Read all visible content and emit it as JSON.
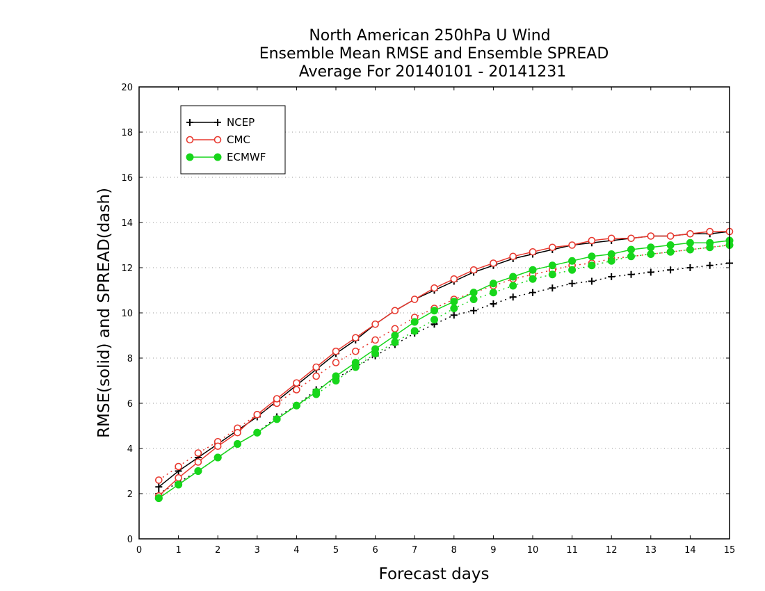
{
  "chart_data": {
    "type": "line",
    "title_lines": [
      "North American 250hPa U Wind",
      "Ensemble Mean RMSE and Ensemble SPREAD",
      "Average For 20140101 - 20141231"
    ],
    "xlabel": "Forecast days",
    "ylabel": "RMSE(solid) and SPREAD(dash)",
    "xlim": [
      0,
      15
    ],
    "ylim": [
      0,
      20
    ],
    "x_ticks": [
      "0",
      "1",
      "2",
      "3",
      "4",
      "5",
      "6",
      "7",
      "8",
      "9",
      "10",
      "11",
      "12",
      "13",
      "14",
      "15"
    ],
    "y_ticks": [
      "0",
      "2",
      "4",
      "6",
      "8",
      "10",
      "12",
      "14",
      "16",
      "18",
      "20"
    ],
    "grid": "horizontal dotted",
    "legend_position": "top-left",
    "x": [
      0.5,
      1,
      1.5,
      2,
      2.5,
      3,
      3.5,
      4,
      4.5,
      5,
      5.5,
      6,
      6.5,
      7,
      7.5,
      8,
      8.5,
      9,
      9.5,
      10,
      10.5,
      11,
      11.5,
      12,
      12.5,
      13,
      13.5,
      14,
      14.5,
      15
    ],
    "series": [
      {
        "name": "NCEP",
        "color": "#000000",
        "marker": "plus",
        "rmse": [
          2.3,
          3.0,
          3.6,
          4.2,
          4.8,
          5.4,
          6.1,
          6.8,
          7.5,
          8.2,
          8.8,
          9.5,
          10.1,
          10.6,
          11.0,
          11.4,
          11.8,
          12.1,
          12.4,
          12.6,
          12.8,
          13.0,
          13.1,
          13.2,
          13.3,
          13.4,
          13.4,
          13.5,
          13.5,
          13.6
        ],
        "spread": [
          2.0,
          2.5,
          3.0,
          3.6,
          4.2,
          4.7,
          5.4,
          5.9,
          6.6,
          7.1,
          7.6,
          8.1,
          8.6,
          9.1,
          9.5,
          9.9,
          10.1,
          10.4,
          10.7,
          10.9,
          11.1,
          11.3,
          11.4,
          11.6,
          11.7,
          11.8,
          11.9,
          12.0,
          12.1,
          12.2
        ]
      },
      {
        "name": "CMC",
        "color": "#e8392f",
        "marker": "open-circle",
        "rmse": [
          1.9,
          2.7,
          3.4,
          4.1,
          4.7,
          5.5,
          6.2,
          6.9,
          7.6,
          8.3,
          8.9,
          9.5,
          10.1,
          10.6,
          11.1,
          11.5,
          11.9,
          12.2,
          12.5,
          12.7,
          12.9,
          13.0,
          13.2,
          13.3,
          13.3,
          13.4,
          13.4,
          13.5,
          13.6,
          13.6
        ],
        "spread": [
          2.6,
          3.2,
          3.8,
          4.3,
          4.9,
          5.5,
          6.0,
          6.6,
          7.2,
          7.8,
          8.3,
          8.8,
          9.3,
          9.8,
          10.2,
          10.6,
          10.9,
          11.2,
          11.5,
          11.7,
          11.9,
          12.1,
          12.2,
          12.4,
          12.5,
          12.6,
          12.7,
          12.8,
          12.9,
          13.0
        ]
      },
      {
        "name": "ECMWF",
        "color": "#17d61b",
        "marker": "filled-circle",
        "rmse": [
          1.8,
          2.4,
          3.0,
          3.6,
          4.2,
          4.7,
          5.3,
          5.9,
          6.5,
          7.2,
          7.8,
          8.4,
          9.0,
          9.6,
          10.1,
          10.5,
          10.9,
          11.3,
          11.6,
          11.9,
          12.1,
          12.3,
          12.5,
          12.6,
          12.8,
          12.9,
          13.0,
          13.1,
          13.1,
          13.2
        ],
        "spread": [
          1.8,
          2.4,
          3.0,
          3.6,
          4.2,
          4.7,
          5.3,
          5.9,
          6.4,
          7.0,
          7.6,
          8.2,
          8.7,
          9.2,
          9.7,
          10.2,
          10.6,
          10.9,
          11.2,
          11.5,
          11.7,
          11.9,
          12.1,
          12.3,
          12.5,
          12.6,
          12.7,
          12.8,
          12.9,
          13.0
        ]
      }
    ]
  }
}
